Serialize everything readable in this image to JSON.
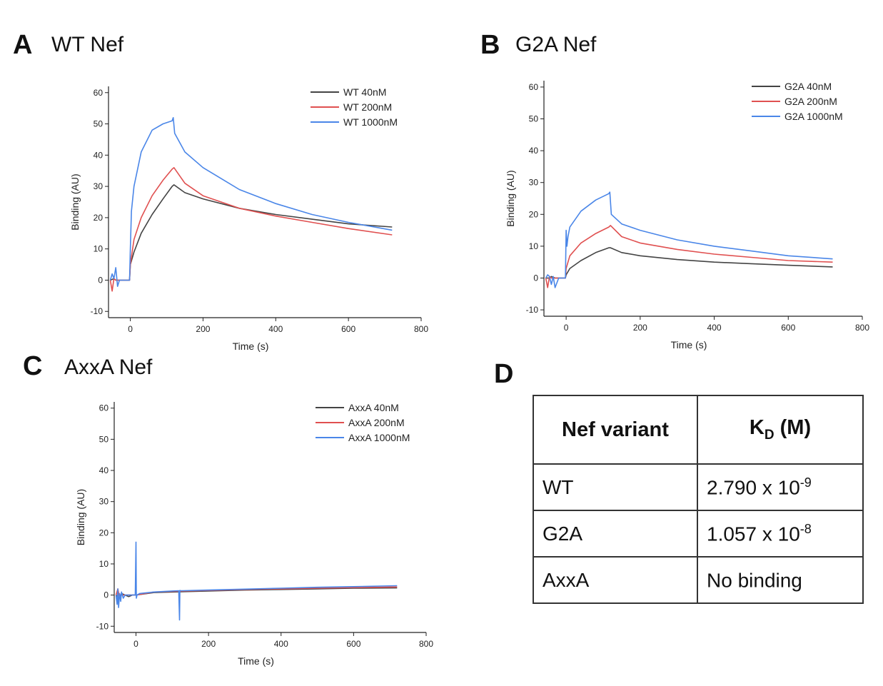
{
  "panels": [
    {
      "letter": "A",
      "title": "WT Nef"
    },
    {
      "letter": "B",
      "title": "G2A Nef"
    },
    {
      "letter": "C",
      "title": "AxxA Nef"
    },
    {
      "letter": "D"
    }
  ],
  "colors": {
    "low": "#444444",
    "mid": "#e05050",
    "high": "#4a86e8"
  },
  "chart_data": [
    {
      "type": "line",
      "panel": "A",
      "xlabel": "Time (s)",
      "ylabel": "Binding (AU)",
      "xlim": [
        -60,
        800
      ],
      "ylim": [
        -12,
        62
      ],
      "xticks": [
        0,
        200,
        400,
        600,
        800
      ],
      "yticks": [
        -10,
        0,
        10,
        20,
        30,
        40,
        50,
        60
      ],
      "legend_position": "top-right",
      "series": [
        {
          "name": "WT 40nM",
          "color": "#444444",
          "x": [
            -55,
            -45,
            -40,
            -30,
            -20,
            -10,
            -2,
            0,
            10,
            30,
            60,
            90,
            115,
            120,
            150,
            200,
            300,
            400,
            500,
            600,
            720
          ],
          "y": [
            0,
            0.5,
            0,
            0,
            0,
            0,
            0,
            5,
            9,
            15,
            21,
            26,
            30,
            30.5,
            28,
            26,
            23,
            21,
            19.5,
            18,
            17
          ]
        },
        {
          "name": "WT 200nM",
          "color": "#e05050",
          "x": [
            -55,
            -50,
            -45,
            -40,
            -30,
            -20,
            -10,
            -2,
            0,
            10,
            30,
            60,
            90,
            115,
            120,
            150,
            200,
            300,
            400,
            500,
            600,
            720
          ],
          "y": [
            0,
            -3.5,
            0.5,
            0,
            0,
            0,
            0,
            0,
            5,
            13,
            20,
            27,
            32,
            35.5,
            36,
            31,
            27,
            23,
            20.5,
            18.5,
            16.5,
            14.5
          ]
        },
        {
          "name": "WT 1000nM",
          "color": "#4a86e8",
          "x": [
            -55,
            -50,
            -45,
            -40,
            -35,
            -30,
            -20,
            -10,
            -2,
            0,
            3,
            10,
            30,
            60,
            90,
            115,
            118,
            122,
            150,
            200,
            300,
            400,
            500,
            600,
            720
          ],
          "y": [
            0,
            2,
            0.5,
            4,
            -2,
            0,
            0,
            0,
            0,
            10,
            22,
            30,
            41,
            48,
            50,
            51,
            52,
            47,
            41,
            36,
            29,
            24.5,
            21,
            18.5,
            16
          ]
        }
      ]
    },
    {
      "type": "line",
      "panel": "B",
      "xlabel": "Time (s)",
      "ylabel": "Binding (AU)",
      "xlim": [
        -60,
        800
      ],
      "ylim": [
        -12,
        62
      ],
      "xticks": [
        0,
        200,
        400,
        600,
        800
      ],
      "yticks": [
        -10,
        0,
        10,
        20,
        30,
        40,
        50,
        60
      ],
      "legend_position": "top-right",
      "series": [
        {
          "name": "G2A 40nM",
          "color": "#444444",
          "x": [
            -55,
            -45,
            -40,
            -30,
            -20,
            -10,
            -2,
            0,
            10,
            40,
            80,
            115,
            120,
            150,
            200,
            300,
            400,
            500,
            600,
            720
          ],
          "y": [
            0,
            0,
            0.5,
            0,
            0,
            0,
            0,
            1,
            3,
            5.5,
            8,
            9.5,
            9.5,
            8,
            7,
            5.8,
            5,
            4.5,
            4,
            3.5
          ]
        },
        {
          "name": "G2A 200nM",
          "color": "#e05050",
          "x": [
            -55,
            -50,
            -45,
            -40,
            -30,
            -20,
            -10,
            -2,
            0,
            10,
            40,
            80,
            115,
            120,
            150,
            200,
            300,
            400,
            500,
            600,
            720
          ],
          "y": [
            0,
            -3,
            0.5,
            0,
            0,
            0,
            0,
            0,
            3,
            7,
            11,
            14,
            16,
            16.5,
            13,
            11,
            9,
            7.5,
            6.5,
            5.5,
            5
          ]
        },
        {
          "name": "G2A 1000nM",
          "color": "#4a86e8",
          "x": [
            -55,
            -50,
            -45,
            -40,
            -35,
            -30,
            -20,
            -10,
            -2,
            0,
            2,
            5,
            10,
            40,
            80,
            115,
            118,
            122,
            150,
            200,
            300,
            400,
            500,
            600,
            720
          ],
          "y": [
            0,
            1,
            0.5,
            -2,
            0.5,
            -3,
            0,
            0,
            0,
            15,
            10,
            13,
            16,
            21,
            24.5,
            26.5,
            27,
            20,
            17,
            15,
            12,
            10,
            8.5,
            7,
            6
          ]
        }
      ]
    },
    {
      "type": "line",
      "panel": "C",
      "xlabel": "Time (s)",
      "ylabel": "Binding (AU)",
      "xlim": [
        -60,
        800
      ],
      "ylim": [
        -12,
        62
      ],
      "xticks": [
        0,
        200,
        400,
        600,
        800
      ],
      "yticks": [
        -10,
        0,
        10,
        20,
        30,
        40,
        50,
        60
      ],
      "legend_position": "top-right",
      "series": [
        {
          "name": "AxxA 40nM",
          "color": "#444444",
          "x": [
            -55,
            -45,
            -40,
            -30,
            -20,
            -10,
            0,
            50,
            100,
            200,
            300,
            400,
            500,
            600,
            720
          ],
          "y": [
            0,
            -1,
            0.5,
            0,
            -0.5,
            0,
            0,
            0.8,
            1,
            1.3,
            1.6,
            1.8,
            2,
            2.2,
            2.3
          ]
        },
        {
          "name": "AxxA 200nM",
          "color": "#e05050",
          "x": [
            -55,
            -50,
            -45,
            -40,
            -30,
            -20,
            -10,
            0,
            50,
            100,
            200,
            300,
            400,
            500,
            600,
            720
          ],
          "y": [
            0,
            2,
            -1,
            0,
            0,
            0,
            0,
            0,
            1,
            1.2,
            1.5,
            1.8,
            2,
            2.2,
            2.4,
            2.6
          ]
        },
        {
          "name": "AxxA 1000nM",
          "color": "#4a86e8",
          "x": [
            -55,
            -52,
            -50,
            -48,
            -45,
            -42,
            -40,
            -35,
            -30,
            -20,
            -10,
            -2,
            0,
            1,
            3,
            10,
            50,
            100,
            118,
            120,
            121,
            123,
            130,
            200,
            300,
            400,
            500,
            600,
            720
          ],
          "y": [
            0,
            -3,
            2,
            -4,
            0.5,
            -2,
            1,
            -1,
            0,
            0,
            0,
            0,
            17,
            -1,
            0,
            0.5,
            1,
            1.3,
            1.4,
            -8,
            1.5,
            1.4,
            1.4,
            1.6,
            1.9,
            2.2,
            2.5,
            2.7,
            3
          ]
        }
      ]
    },
    {
      "type": "table",
      "panel": "D",
      "columns": [
        "Nef variant",
        "K",
        "D",
        " (M)"
      ],
      "rows": [
        {
          "variant": "WT",
          "mantissa": "2.790 x 10",
          "exponent": "-9"
        },
        {
          "variant": "G2A",
          "mantissa": "1.057 x 10",
          "exponent": "-8"
        },
        {
          "variant": "AxxA",
          "mantissa": "No binding",
          "exponent": ""
        }
      ]
    }
  ]
}
